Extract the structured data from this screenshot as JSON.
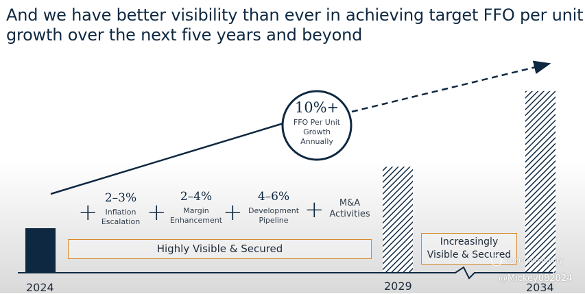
{
  "title": {
    "line1": "And we have better visibility than ever in achieving target FFO per unit",
    "line2": "growth over the next five years and beyond"
  },
  "chart_data": {
    "type": "bar",
    "categories": [
      "2024",
      "2029",
      "2034"
    ],
    "values": [
      1.0,
      2.38,
      4.08
    ],
    "bar_styles": [
      "solid",
      "hatched",
      "hatched"
    ],
    "trend": {
      "label": "10%+",
      "sublabel": "FFO Per Unit Growth Annually",
      "style": "solid-then-dashed-arrow"
    },
    "colors": {
      "bar": "#0e2841",
      "box_border": "#d68a2a",
      "text": "#0e2841"
    }
  },
  "components": [
    {
      "pct": "2–3%",
      "label": "Inflation Escalation"
    },
    {
      "pct": "2–4%",
      "label": "Margin Enhancement"
    },
    {
      "pct": "4–6%",
      "label": "Development Pipeline"
    },
    {
      "pct": "",
      "label": "M&A Activities"
    }
  ],
  "plus_sign": "+",
  "boxes": {
    "secured": "Highly Visible & Secured",
    "increasing_line1": "Increasingly",
    "increasing_line2": "Visible & Secured"
  },
  "watermark": {
    "brand": "Tiger Community",
    "user": "@Mickey082024"
  }
}
